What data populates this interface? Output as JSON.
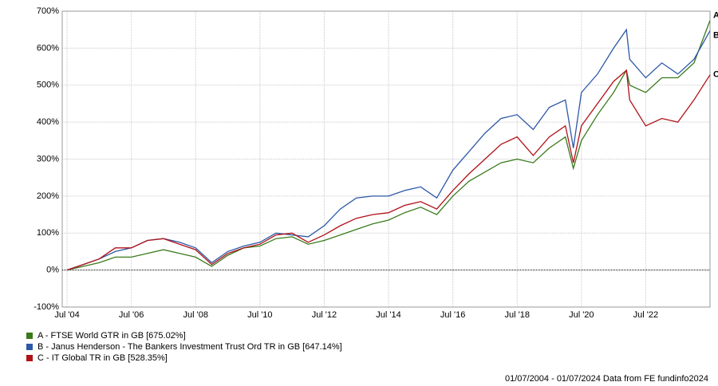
{
  "chart_data": {
    "type": "line",
    "x": [
      2004.5,
      2005.0,
      2005.5,
      2006.0,
      2006.5,
      2007.0,
      2007.5,
      2008.0,
      2008.5,
      2009.0,
      2009.5,
      2010.0,
      2010.5,
      2011.0,
      2011.5,
      2012.0,
      2012.5,
      2013.0,
      2013.5,
      2014.0,
      2014.5,
      2015.0,
      2015.5,
      2016.0,
      2016.5,
      2017.0,
      2017.5,
      2018.0,
      2018.5,
      2019.0,
      2019.5,
      2020.0,
      2020.25,
      2020.5,
      2021.0,
      2021.5,
      2021.9,
      2022.0,
      2022.5,
      2023.0,
      2023.5,
      2024.0,
      2024.5
    ],
    "series": [
      {
        "name": "A - FTSE World GTR in GB [675.02%]",
        "label": "A",
        "color": "#3a7a1c",
        "values": [
          0,
          10,
          20,
          35,
          35,
          45,
          55,
          45,
          35,
          10,
          40,
          60,
          65,
          85,
          90,
          70,
          80,
          95,
          110,
          125,
          135,
          155,
          170,
          150,
          200,
          240,
          265,
          290,
          300,
          290,
          330,
          360,
          275,
          350,
          420,
          480,
          540,
          500,
          480,
          520,
          520,
          560,
          675
        ]
      },
      {
        "name": "B - Janus Henderson - The Bankers Investment Trust Ord TR in GB [647.14%]",
        "label": "B",
        "color": "#2c58a8",
        "values": [
          0,
          15,
          30,
          50,
          60,
          80,
          85,
          75,
          60,
          20,
          50,
          65,
          75,
          100,
          95,
          90,
          120,
          165,
          195,
          200,
          200,
          215,
          225,
          195,
          270,
          320,
          370,
          410,
          420,
          380,
          440,
          460,
          330,
          480,
          530,
          600,
          650,
          570,
          520,
          560,
          530,
          570,
          647
        ]
      },
      {
        "name": "C - IT Global TR in GB [528.35%]",
        "label": "C",
        "color": "#b01018",
        "values": [
          0,
          15,
          30,
          60,
          60,
          80,
          85,
          70,
          55,
          15,
          45,
          60,
          70,
          95,
          100,
          75,
          95,
          120,
          140,
          150,
          155,
          175,
          185,
          165,
          215,
          260,
          300,
          340,
          360,
          310,
          360,
          390,
          290,
          390,
          450,
          510,
          540,
          460,
          390,
          410,
          400,
          460,
          528
        ]
      }
    ],
    "xlim": [
      2004.35,
      2024.5
    ],
    "xticks": [
      {
        "value": 2004.5,
        "label": "Jul '04"
      },
      {
        "value": 2006.5,
        "label": "Jul '06"
      },
      {
        "value": 2008.5,
        "label": "Jul '08"
      },
      {
        "value": 2010.5,
        "label": "Jul '10"
      },
      {
        "value": 2012.5,
        "label": "Jul '12"
      },
      {
        "value": 2014.5,
        "label": "Jul '14"
      },
      {
        "value": 2016.5,
        "label": "Jul '16"
      },
      {
        "value": 2018.5,
        "label": "Jul '18"
      },
      {
        "value": 2020.5,
        "label": "Jul '20"
      },
      {
        "value": 2022.5,
        "label": "Jul '22"
      }
    ],
    "ylim": [
      -100,
      700
    ],
    "yticks": [
      {
        "value": -100,
        "label": "-100%"
      },
      {
        "value": 0,
        "label": "0%"
      },
      {
        "value": 100,
        "label": "100%"
      },
      {
        "value": 200,
        "label": "200%"
      },
      {
        "value": 300,
        "label": "300%"
      },
      {
        "value": 400,
        "label": "400%"
      },
      {
        "value": 500,
        "label": "500%"
      },
      {
        "value": 600,
        "label": "600%"
      },
      {
        "value": 700,
        "label": "700%"
      }
    ],
    "grid": true,
    "footer": "01/07/2004 - 01/07/2024 Data from FE fundinfo2024"
  }
}
